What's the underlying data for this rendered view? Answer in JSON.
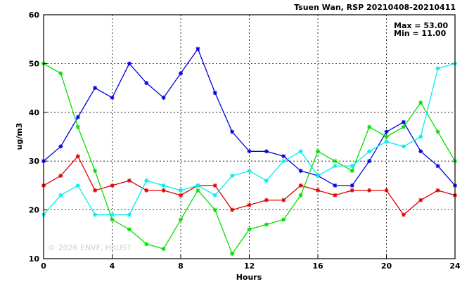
{
  "chart_data": {
    "type": "line",
    "title": "Tsuen Wan, RSP 20210408-20210411",
    "xlabel": "Hours",
    "ylabel": "ug/m3",
    "xlim": [
      0,
      24
    ],
    "ylim": [
      10,
      60
    ],
    "xticks": [
      0,
      4,
      8,
      12,
      16,
      20,
      24
    ],
    "yticks": [
      10,
      20,
      30,
      40,
      50,
      60
    ],
    "grid": true,
    "stats": {
      "max": "Max = 53.00",
      "min": "Min = 11.00"
    },
    "watermark": "© 2026  ENVF, HKUST",
    "x": [
      0,
      1,
      2,
      3,
      4,
      5,
      6,
      7,
      8,
      9,
      10,
      11,
      12,
      13,
      14,
      15,
      16,
      17,
      18,
      19,
      20,
      21,
      22,
      23,
      24
    ],
    "series": [
      {
        "color": "#e00000",
        "values": [
          25,
          27,
          31,
          24,
          25,
          26,
          24,
          24,
          23,
          25,
          25,
          20,
          21,
          22,
          22,
          25,
          24,
          23,
          24,
          24,
          24,
          19,
          22,
          24,
          23
        ]
      },
      {
        "color": "#0000e0",
        "values": [
          30,
          33,
          39,
          45,
          43,
          50,
          46,
          43,
          48,
          53,
          44,
          36,
          32,
          32,
          31,
          28,
          27,
          25,
          25,
          30,
          36,
          38,
          32,
          29,
          25
        ]
      },
      {
        "color": "#00e000",
        "values": [
          50,
          48,
          37,
          28,
          18,
          16,
          13,
          12,
          18,
          24,
          20,
          11,
          16,
          17,
          18,
          23,
          32,
          30,
          28,
          37,
          35,
          37,
          42,
          36,
          30
        ]
      },
      {
        "color": "#00eeee",
        "values": [
          19,
          23,
          25,
          19,
          19,
          19,
          26,
          25,
          24,
          25,
          23,
          27,
          28,
          26,
          30,
          32,
          27,
          29,
          29,
          32,
          34,
          33,
          35,
          49,
          50
        ]
      }
    ]
  }
}
